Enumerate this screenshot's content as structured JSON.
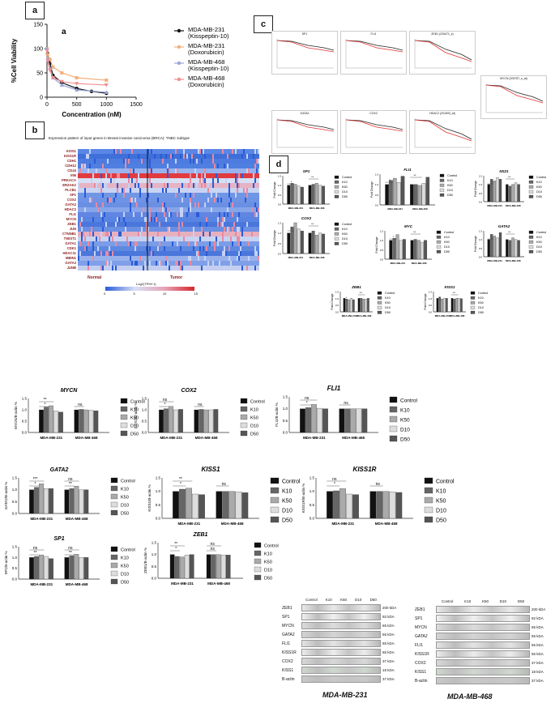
{
  "panels": {
    "a": "a",
    "b": "b",
    "c": "c",
    "d": "d"
  },
  "chart_data": [
    {
      "id": "viability",
      "type": "line",
      "title": "",
      "annotation": "a",
      "xlabel": "Concentration (nM)",
      "ylabel": "%Cell Viability",
      "xlim": [
        0,
        1500
      ],
      "ylim": [
        0,
        150
      ],
      "xticks": [
        "0",
        "500",
        "1000",
        "1500"
      ],
      "yticks": [
        "0",
        "50",
        "100",
        "150"
      ],
      "series": [
        {
          "name": "MDA-MB-231 (Kisspeptin-10)",
          "color": "#111111",
          "marker": "circle",
          "x": [
            0,
            10,
            50,
            100,
            250,
            500,
            750,
            1000
          ],
          "y": [
            100,
            90,
            70,
            45,
            30,
            18,
            12,
            8
          ]
        },
        {
          "name": "MDA-MB-231 (Doxorubicin)",
          "color": "#f2b07c",
          "marker": "square",
          "x": [
            0,
            10,
            50,
            100,
            250,
            500,
            1000
          ],
          "y": [
            100,
            88,
            78,
            62,
            50,
            40,
            35
          ]
        },
        {
          "name": "MDA-MB-468 (Kisspeptin-10)",
          "color": "#9aa6d6",
          "marker": "triangle",
          "x": [
            0,
            10,
            50,
            100,
            250,
            500,
            1000
          ],
          "y": [
            100,
            80,
            60,
            40,
            25,
            15,
            10
          ]
        },
        {
          "name": "MDA-MB-468 (Doxorubicin)",
          "color": "#ef8f8f",
          "marker": "triangle-down",
          "x": [
            0,
            10,
            50,
            100,
            250,
            500,
            1000
          ],
          "y": [
            95,
            75,
            55,
            40,
            32,
            28,
            25
          ]
        }
      ]
    },
    {
      "id": "mycn",
      "type": "bar",
      "title": "MYCN",
      "ylabel": "MYCN/B-actin %",
      "categories": [
        "MDA-MB-231",
        "MDA-MB-468"
      ],
      "ylim": [
        0,
        1.5
      ],
      "series": [
        {
          "name": "Control",
          "color": "#111111",
          "values": [
            1.0,
            1.0
          ]
        },
        {
          "name": "K10",
          "color": "#666666",
          "values": [
            1.12,
            1.02
          ]
        },
        {
          "name": "K50",
          "color": "#aaaaaa",
          "values": [
            1.18,
            1.0
          ]
        },
        {
          "name": "D10",
          "color": "#dddddd",
          "values": [
            0.95,
            0.98
          ]
        },
        {
          "name": "D50",
          "color": "#555555",
          "values": [
            0.9,
            0.96
          ]
        }
      ],
      "annotations": [
        "*",
        "**",
        "ns"
      ]
    },
    {
      "id": "cox2",
      "type": "bar",
      "title": "COX2",
      "ylabel": "COX2/B-actin %",
      "categories": [
        "MDA-MB-231",
        "MDA-MB-468"
      ],
      "ylim": [
        0,
        1.5
      ],
      "series": [
        {
          "name": "Control",
          "color": "#111111",
          "values": [
            1.0,
            1.0
          ]
        },
        {
          "name": "K10",
          "color": "#666666",
          "values": [
            1.05,
            1.02
          ]
        },
        {
          "name": "K50",
          "color": "#aaaaaa",
          "values": [
            1.15,
            1.0
          ]
        },
        {
          "name": "D10",
          "color": "#dddddd",
          "values": [
            1.0,
            1.0
          ]
        },
        {
          "name": "D50",
          "color": "#555555",
          "values": [
            1.02,
            1.02
          ]
        }
      ],
      "annotations": [
        "*",
        "ns",
        "ns"
      ]
    },
    {
      "id": "fli1",
      "type": "bar",
      "title": "FLI1",
      "ylabel": "FLI1/B-actin %",
      "categories": [
        "MDA-MB-231",
        "MDA-MB-468"
      ],
      "ylim": [
        0,
        1.5
      ],
      "series": [
        {
          "name": "Control",
          "color": "#111111",
          "values": [
            1.0,
            1.0
          ]
        },
        {
          "name": "K10",
          "color": "#666666",
          "values": [
            1.05,
            1.0
          ]
        },
        {
          "name": "K50",
          "color": "#aaaaaa",
          "values": [
            1.18,
            1.0
          ]
        },
        {
          "name": "D10",
          "color": "#dddddd",
          "values": [
            1.02,
            1.0
          ]
        },
        {
          "name": "D50",
          "color": "#555555",
          "values": [
            1.0,
            1.0
          ]
        }
      ],
      "annotations": [
        "*",
        "ns",
        "ns"
      ]
    },
    {
      "id": "gata2",
      "type": "bar",
      "title": "GATA2",
      "ylabel": "GATA2/B-actin %",
      "categories": [
        "MDA-MB-231",
        "MDA-MB-468"
      ],
      "ylim": [
        0,
        1.5
      ],
      "series": [
        {
          "name": "Control",
          "color": "#111111",
          "values": [
            1.0,
            1.0
          ]
        },
        {
          "name": "K10",
          "color": "#666666",
          "values": [
            1.1,
            1.05
          ]
        },
        {
          "name": "K50",
          "color": "#aaaaaa",
          "values": [
            1.25,
            1.15
          ]
        },
        {
          "name": "D10",
          "color": "#dddddd",
          "values": [
            1.05,
            1.0
          ]
        },
        {
          "name": "D50",
          "color": "#555555",
          "values": [
            1.05,
            1.0
          ]
        }
      ],
      "annotations": [
        "*",
        "***",
        "**",
        "ns"
      ]
    },
    {
      "id": "kiss1",
      "type": "bar",
      "title": "KISS1",
      "ylabel": "KISS1/B-actin %",
      "categories": [
        "MDA-MB-231",
        "MDA-MB-468"
      ],
      "ylim": [
        0,
        1.5
      ],
      "series": [
        {
          "name": "Control",
          "color": "#111111",
          "values": [
            1.0,
            1.0
          ]
        },
        {
          "name": "K10",
          "color": "#666666",
          "values": [
            1.08,
            1.0
          ]
        },
        {
          "name": "K50",
          "color": "#aaaaaa",
          "values": [
            1.12,
            1.0
          ]
        },
        {
          "name": "D10",
          "color": "#dddddd",
          "values": [
            0.9,
            0.98
          ]
        },
        {
          "name": "D50",
          "color": "#555555",
          "values": [
            0.88,
            0.95
          ]
        }
      ],
      "annotations": [
        "*",
        "**",
        "ns"
      ]
    },
    {
      "id": "kiss1r",
      "type": "bar",
      "title": "KISS1R",
      "ylabel": "KISS1R/B-actin %",
      "categories": [
        "MDA-MB-231",
        "MDA-MB-468"
      ],
      "ylim": [
        0,
        1.5
      ],
      "series": [
        {
          "name": "Control",
          "color": "#111111",
          "values": [
            1.0,
            1.0
          ]
        },
        {
          "name": "K10",
          "color": "#666666",
          "values": [
            1.02,
            1.0
          ]
        },
        {
          "name": "K50",
          "color": "#aaaaaa",
          "values": [
            1.1,
            1.0
          ]
        },
        {
          "name": "D10",
          "color": "#dddddd",
          "values": [
            0.9,
            0.98
          ]
        },
        {
          "name": "D50",
          "color": "#555555",
          "values": [
            0.88,
            0.96
          ]
        }
      ],
      "annotations": [
        "*",
        "ns",
        "ns"
      ]
    },
    {
      "id": "sp1",
      "type": "bar",
      "title": "SP1",
      "ylabel": "SP1/B-actin %",
      "categories": [
        "MDA-MB-231",
        "MDA-MB-468"
      ],
      "ylim": [
        0,
        1.5
      ],
      "series": [
        {
          "name": "Control",
          "color": "#111111",
          "values": [
            1.0,
            1.0
          ]
        },
        {
          "name": "K10",
          "color": "#666666",
          "values": [
            1.05,
            1.08
          ]
        },
        {
          "name": "K50",
          "color": "#aaaaaa",
          "values": [
            1.12,
            1.15
          ]
        },
        {
          "name": "D10",
          "color": "#dddddd",
          "values": [
            1.05,
            1.0
          ]
        },
        {
          "name": "D50",
          "color": "#555555",
          "values": [
            0.95,
            1.0
          ]
        }
      ],
      "annotations": [
        "**",
        "ns",
        "**",
        "ns"
      ]
    },
    {
      "id": "zeb1",
      "type": "bar",
      "title": "ZEB1",
      "ylabel": "ZEB1/B-actin %",
      "categories": [
        "MDA-MB-231",
        "MDA-MB-468"
      ],
      "ylim": [
        0,
        1.5
      ],
      "series": [
        {
          "name": "Control",
          "color": "#111111",
          "values": [
            1.0,
            1.0
          ]
        },
        {
          "name": "K10",
          "color": "#666666",
          "values": [
            0.92,
            1.0
          ]
        },
        {
          "name": "K50",
          "color": "#aaaaaa",
          "values": [
            0.9,
            1.0
          ]
        },
        {
          "name": "D10",
          "color": "#dddddd",
          "values": [
            0.98,
            0.98
          ]
        },
        {
          "name": "D50",
          "color": "#555555",
          "values": [
            1.0,
            0.98
          ]
        }
      ],
      "annotations": [
        "*",
        "**",
        "ns",
        "ns"
      ]
    }
  ],
  "heatmap": {
    "title": "Expression pattern of input genes in Breast invasive carcinoma (BRCA): TNBC subtype",
    "genes": [
      "KISS1",
      "KISS1R",
      "CDH1",
      "CDH12",
      "CD44",
      "VIM",
      "PRKACA",
      "ERZAK2",
      "PLCB1",
      "SP1",
      "COX2",
      "GATA2",
      "HDAC2",
      "FLI1",
      "MYCN",
      "ZEB1",
      "JUN",
      "CTNNB1",
      "TWIST1",
      "GATA1",
      "CDK1",
      "HDAC11",
      "MBIN1",
      "GATA3",
      "JUNB"
    ],
    "groups": [
      "Normal",
      "Tumor"
    ],
    "scale_title": "Log2(TPM+1)",
    "scale_ticks": [
      "0",
      "5",
      "10",
      "15"
    ]
  },
  "km": {
    "plots": [
      "SP1",
      "FLI1",
      "ZEB1 (226471_s)",
      "MYCN (209757_s_at)",
      "GATA2",
      "COX2",
      "HDAC2 (201833_at)"
    ]
  },
  "panel_d_small": [
    "SP1",
    "FLI1",
    "NS21",
    "COX2",
    "MYC",
    "GATA2",
    "ZEB1",
    "KISS1"
  ],
  "legend_labels": [
    "Control",
    "K10",
    "K50",
    "D10",
    "D50"
  ],
  "westerns": [
    {
      "cell": "MDA-MB-231",
      "lanes": [
        "Control",
        "K10",
        "K50",
        "D10",
        "D50"
      ],
      "proteins": [
        "ZEB1",
        "SP1",
        "MYCN",
        "GATA2",
        "FLI1",
        "KISS1R",
        "COX2",
        "KISS1",
        "B-actin"
      ],
      "kda": [
        "200 kDA",
        "92 kDA",
        "65 kDA",
        "55 kDA",
        "55 kDA",
        "55 kDA",
        "37 kDA",
        "18 kDA",
        "37 kDA"
      ]
    },
    {
      "cell": "MDA-MB-468",
      "lanes": [
        "Control",
        "K10",
        "K50",
        "D10",
        "D50"
      ],
      "proteins": [
        "ZEB1",
        "SP1",
        "MYCN",
        "GATA2",
        "FLI1",
        "KISS1R",
        "COX2",
        "KISS1",
        "B-actin"
      ],
      "kda": [
        "200 kDA",
        "92 kDA",
        "65 kDA",
        "55 kDA",
        "55 kDA",
        "55 kDA",
        "37 kDA",
        "18 kDA",
        "37 kDA"
      ]
    }
  ]
}
